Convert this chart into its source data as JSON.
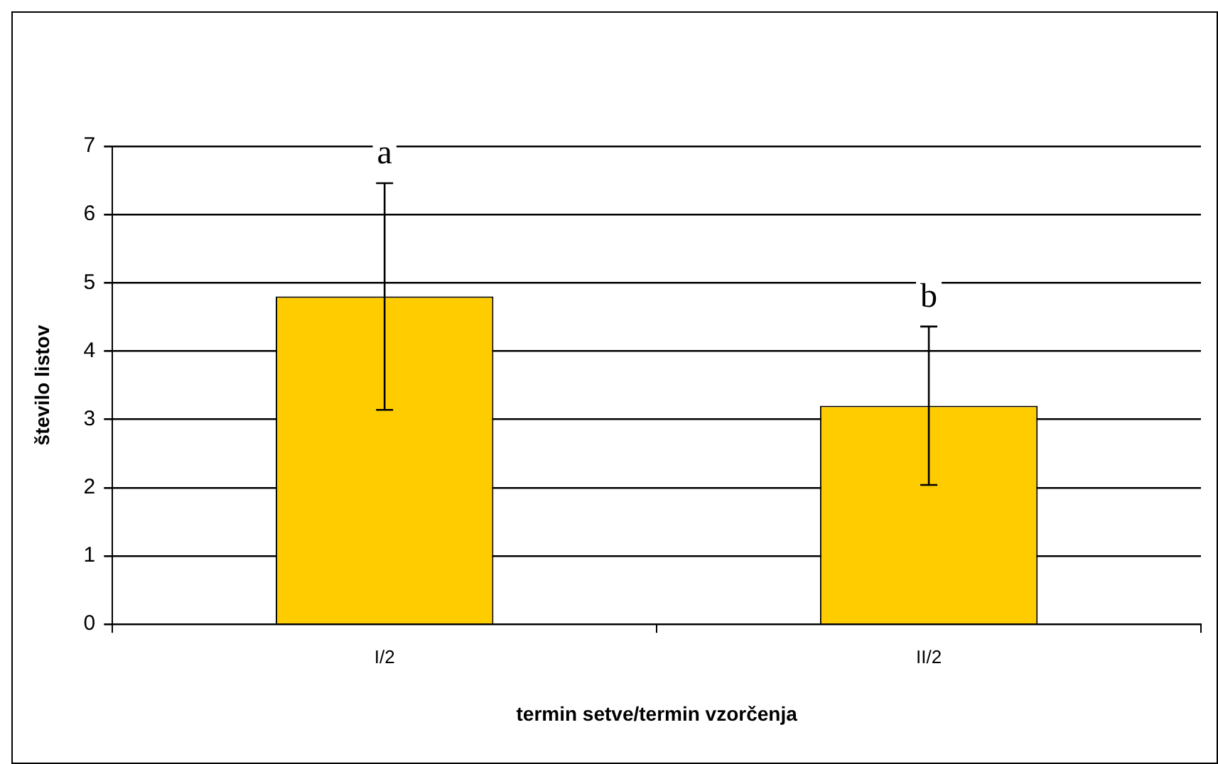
{
  "chart_data": {
    "type": "bar",
    "xlabel": "termin setve/termin vzorčenja",
    "ylabel": "število listov",
    "categories": [
      "I/2",
      "II/2"
    ],
    "series": [
      {
        "color": "#ffcc00",
        "values": [
          4.8,
          3.2
        ],
        "errors": [
          1.66,
          1.16
        ]
      }
    ],
    "ylim": [
      0,
      7
    ],
    "yticks": [
      0,
      1,
      2,
      3,
      4,
      5,
      6,
      7
    ],
    "grid": "y",
    "legend": false,
    "annotations": [
      "a",
      "b"
    ]
  }
}
